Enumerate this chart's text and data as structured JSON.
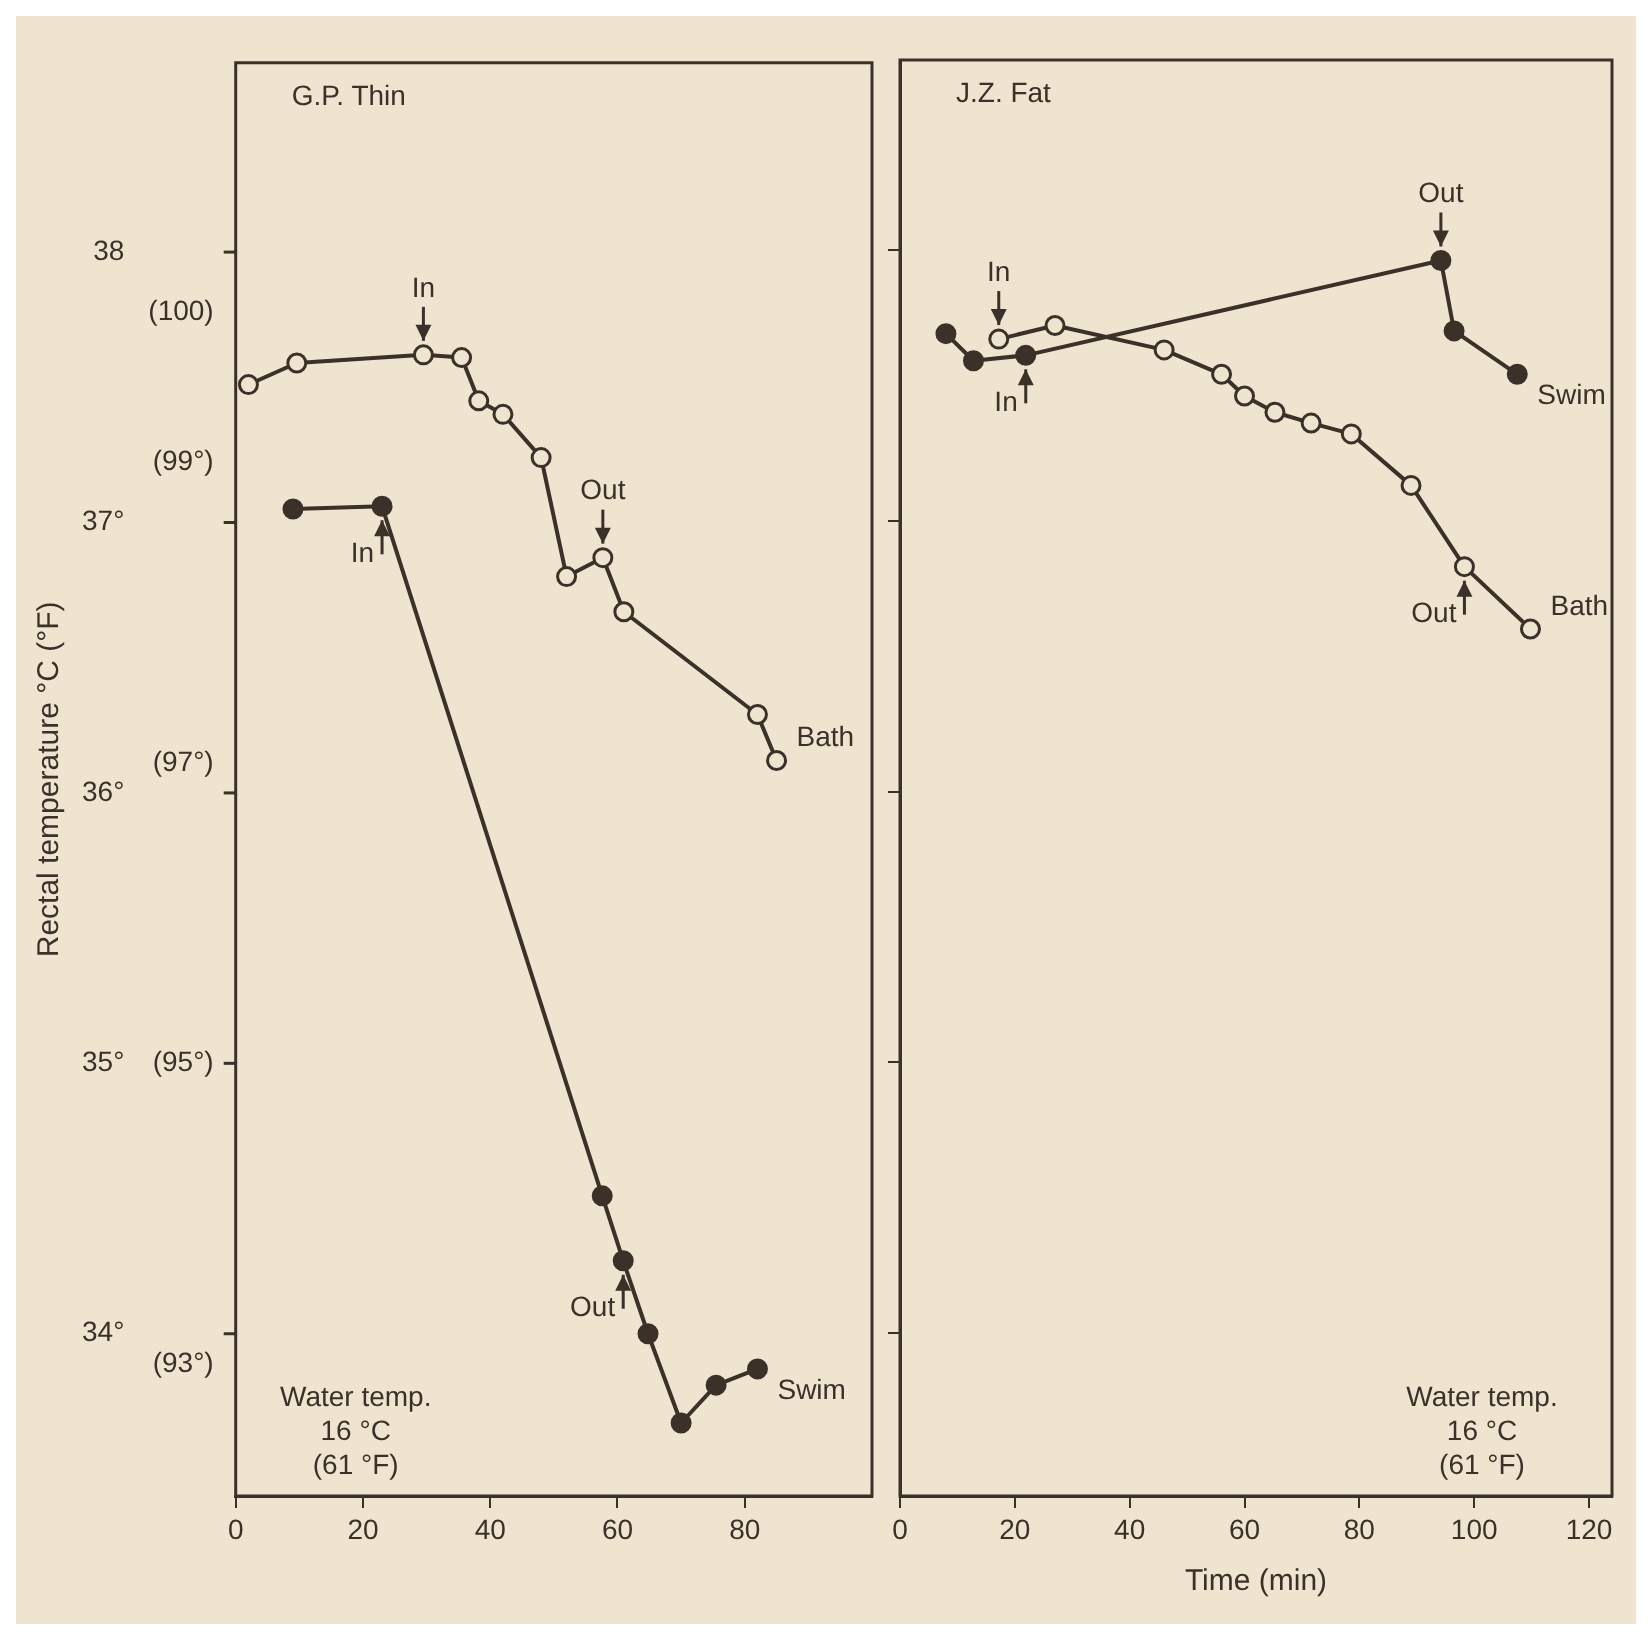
{
  "chart_data": [
    {
      "type": "line",
      "title": "G.P. Thin",
      "ylabel": "Rectal temperature °C (°F)",
      "xlim": [
        0,
        100
      ],
      "xticks": [
        0,
        20,
        40,
        60,
        80
      ],
      "ylim": [
        33.4,
        38.7
      ],
      "yticks": [
        38,
        {
          "value": 37,
          "label": "37°"
        },
        {
          "value": 36,
          "label": "36°"
        },
        {
          "value": 35,
          "label": "35°"
        },
        {
          "value": 34,
          "label": "34°"
        }
      ],
      "y2lim": [
        92.12,
        101.66
      ],
      "y2ticks": [
        {
          "value": 100,
          "label": "(100)"
        },
        {
          "value": 99,
          "label": "(99°)"
        },
        {
          "value": 97,
          "label": "(97°)"
        },
        {
          "value": 95,
          "label": "(95°)"
        },
        {
          "value": 93,
          "label": "(93°)"
        }
      ],
      "grid": false,
      "legend": false,
      "marker": "circle",
      "line_style": "solid",
      "series": [
        {
          "name": "Swim",
          "color": "#3b3128",
          "x": [
            9,
            23,
            57.6,
            60.9,
            64.8,
            70,
            75.5,
            82
          ],
          "values": [
            37.05,
            37.06,
            34.51,
            34.27,
            34.0,
            33.67,
            33.81,
            33.87
          ]
        },
        {
          "name": "Bath",
          "color": "#3b3128",
          "x": [
            2,
            9.6,
            29.5,
            35.5,
            38.2,
            42,
            48,
            52,
            57.7,
            61,
            82,
            85
          ],
          "values": [
            37.51,
            37.59,
            37.62,
            37.61,
            37.45,
            37.4,
            37.24,
            36.8,
            36.87,
            36.67,
            36.29,
            36.12
          ]
        }
      ],
      "annotations": [
        {
          "text": "In",
          "x": 29.5,
          "y": 37.62
        },
        {
          "text": "In",
          "x": 23,
          "y": 37.06
        },
        {
          "text": "Out",
          "x": 57.7,
          "y": 36.87
        },
        {
          "text": "Out",
          "x": 60.9,
          "y": 34.27
        },
        "Water temp.\n16 °C\n(61 °F)"
      ]
    },
    {
      "type": "line",
      "title": "J.Z. Fat",
      "xlabel": "Time (min)",
      "xlim": [
        0,
        124
      ],
      "xticks": [
        0,
        20,
        40,
        60,
        80,
        100,
        120
      ],
      "ylim": [
        33.4,
        38.7
      ],
      "yticks": [
        {
          "value": 38,
          "label": null
        },
        {
          "value": 37,
          "label": null
        },
        {
          "value": 36,
          "label": null
        },
        {
          "value": 35,
          "label": null
        },
        {
          "value": 34,
          "label": null
        }
      ],
      "tick_labels": "x",
      "grid": false,
      "legend": false,
      "marker": "circle",
      "line_style": "solid",
      "series": [
        {
          "name": "Swim",
          "color": "#3b3128",
          "x": [
            8,
            12.8,
            21.9,
            94.2,
            96.5,
            107.5
          ],
          "values": [
            37.69,
            37.59,
            37.61,
            37.96,
            37.7,
            37.54
          ]
        },
        {
          "name": "Bath",
          "color": "#3b3128",
          "x": [
            17.2,
            27,
            46,
            56,
            60,
            65.3,
            71.6,
            78.6,
            89,
            98.3,
            109.8
          ],
          "values": [
            37.67,
            37.72,
            37.63,
            37.54,
            37.46,
            37.4,
            37.36,
            37.32,
            37.13,
            36.83,
            36.6
          ]
        }
      ],
      "annotations": [
        {
          "text": "In",
          "x": 17.2,
          "y": 37.67
        },
        {
          "text": "In",
          "x": 21.9,
          "y": 37.61
        },
        {
          "text": "Out",
          "x": 94.2,
          "y": 37.96
        },
        {
          "text": "Out",
          "x": 98.3,
          "y": 36.83
        },
        "Water temp.\n16 °C\n(61 °F)"
      ]
    }
  ]
}
